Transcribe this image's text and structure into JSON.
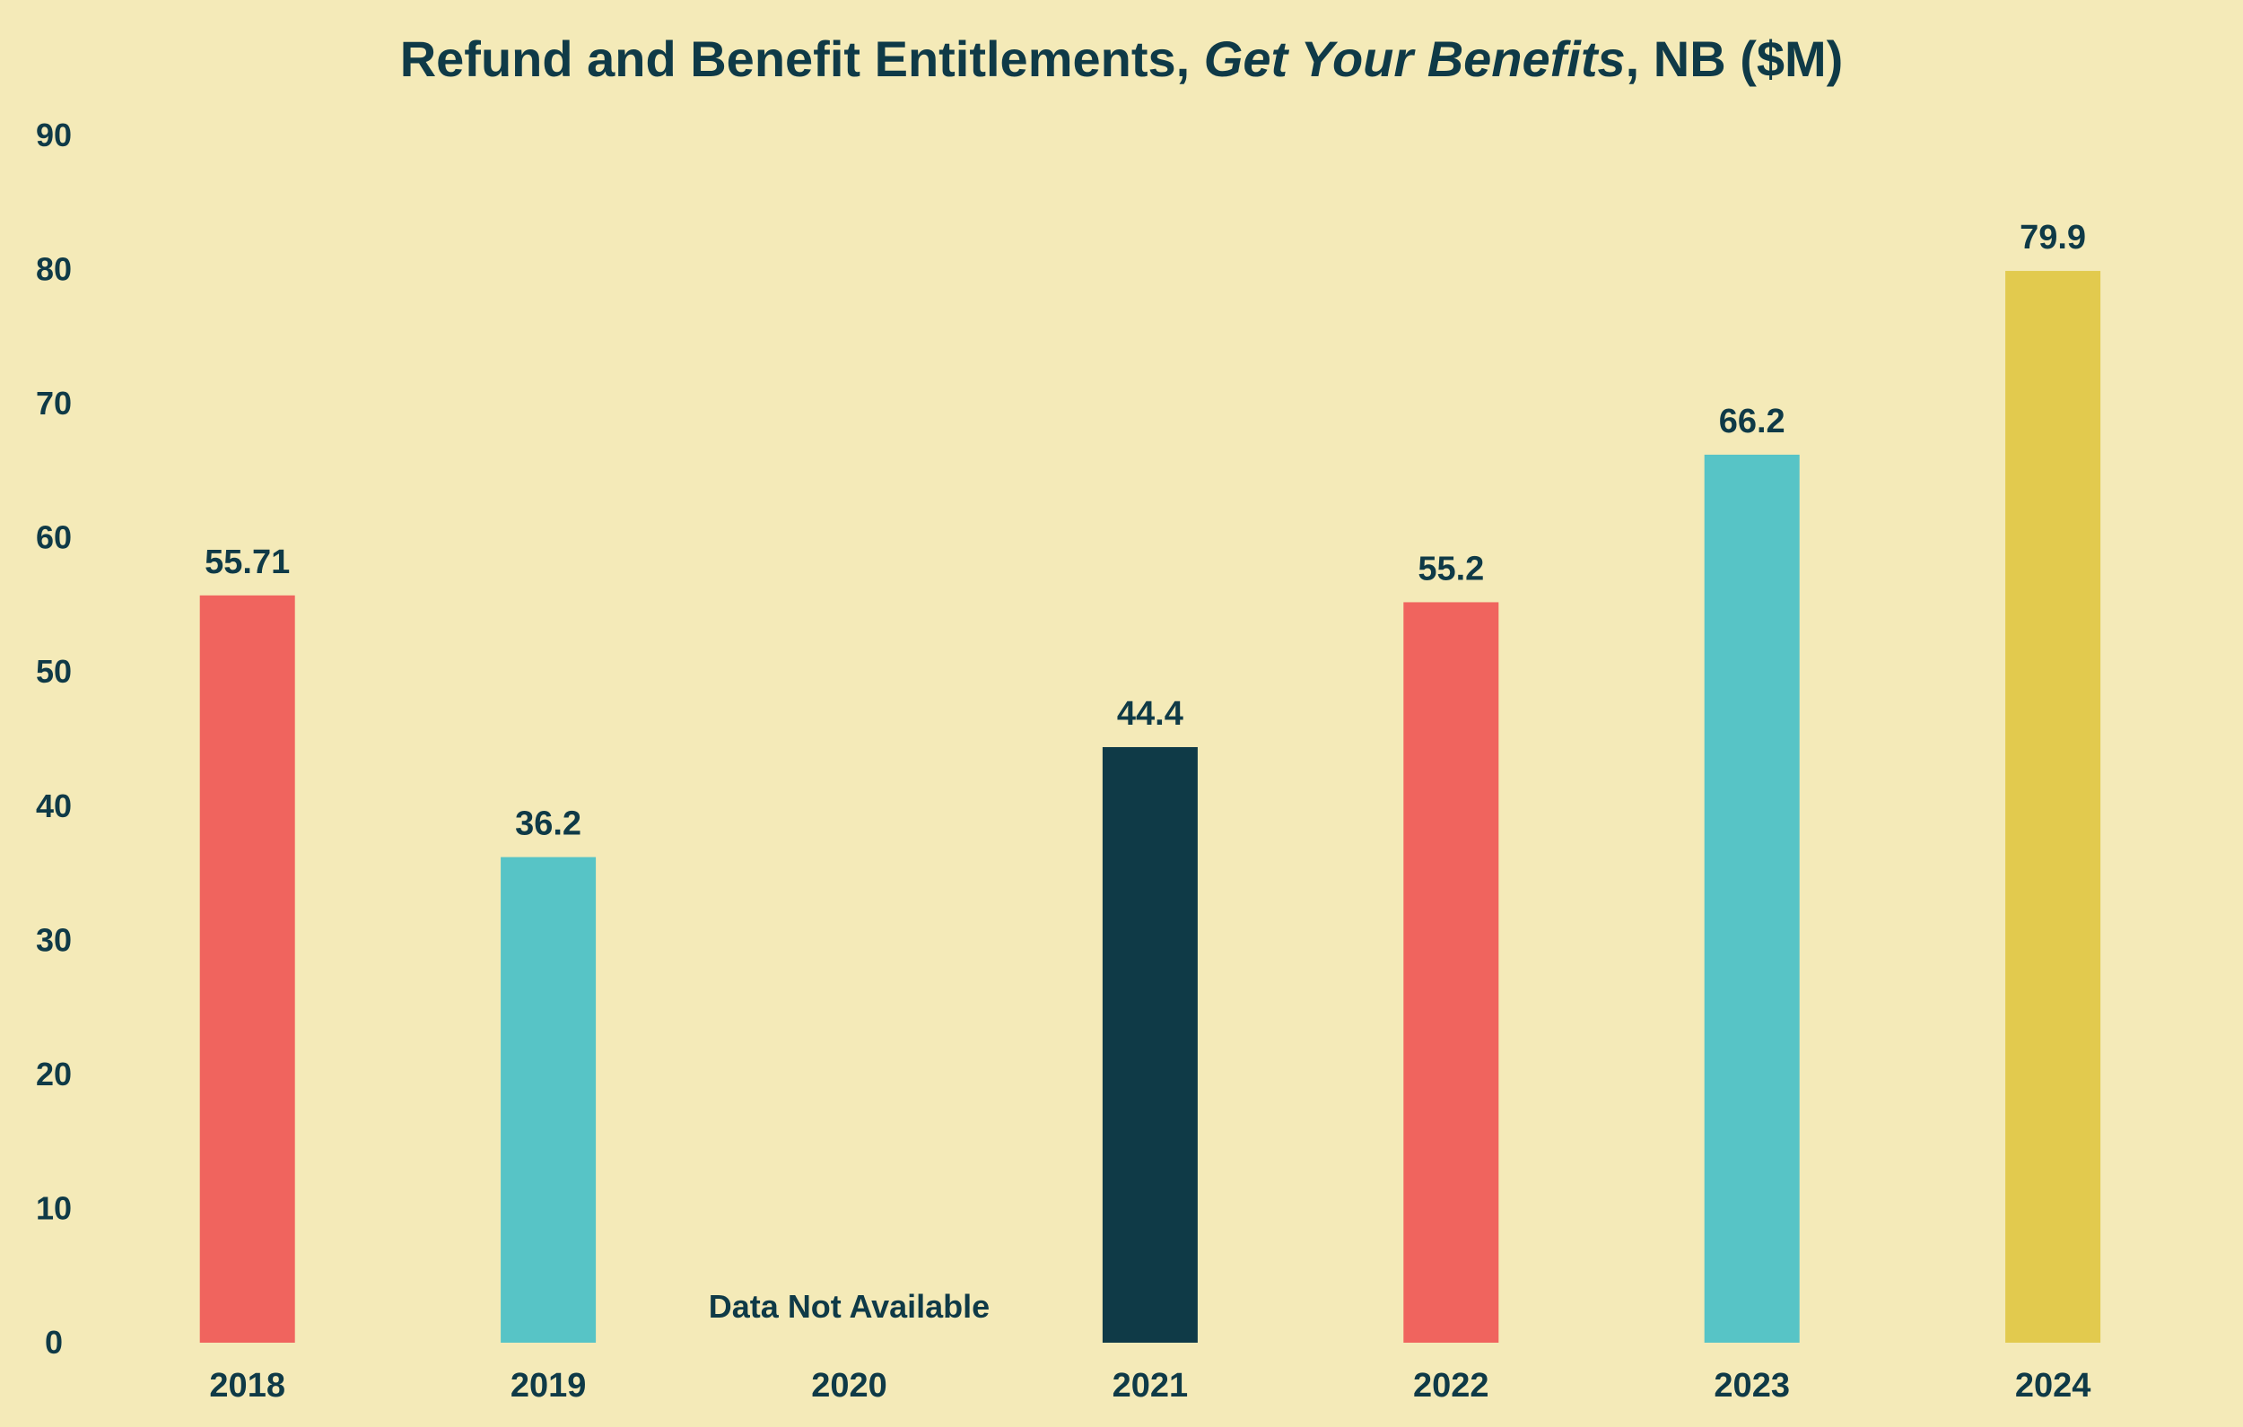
{
  "colors": {
    "background": "#f4eab8",
    "text": "#0f3a47",
    "coral": "#f0645e",
    "teal": "#57c4c6",
    "navy": "#0f3a47",
    "gold": "#e2ca4e"
  },
  "chart_data": {
    "type": "bar",
    "title": {
      "part1": "Refund and Benefit Entitlements, ",
      "part2_italic": "Get Your Benefits",
      "part3": ", NB ($M)"
    },
    "xlabel": "",
    "ylabel": "",
    "ylim": [
      0,
      90
    ],
    "yticks": [
      0,
      10,
      20,
      30,
      40,
      50,
      60,
      70,
      80,
      90
    ],
    "grid": false,
    "legend": "none",
    "categories": [
      "2018",
      "2019",
      "2020",
      "2021",
      "2022",
      "2023",
      "2024"
    ],
    "values": [
      55.71,
      36.2,
      null,
      44.4,
      55.2,
      66.2,
      79.9
    ],
    "value_labels": [
      "55.71",
      "36.2",
      "",
      "44.4",
      "55.2",
      "66.2",
      "79.9"
    ],
    "bar_colors": [
      "#f0645e",
      "#57c4c6",
      null,
      "#0f3a47",
      "#f0645e",
      "#57c4c6",
      "#e2ca4e"
    ],
    "annotations": [
      {
        "category": "2020",
        "text": "Data Not Available"
      }
    ]
  }
}
